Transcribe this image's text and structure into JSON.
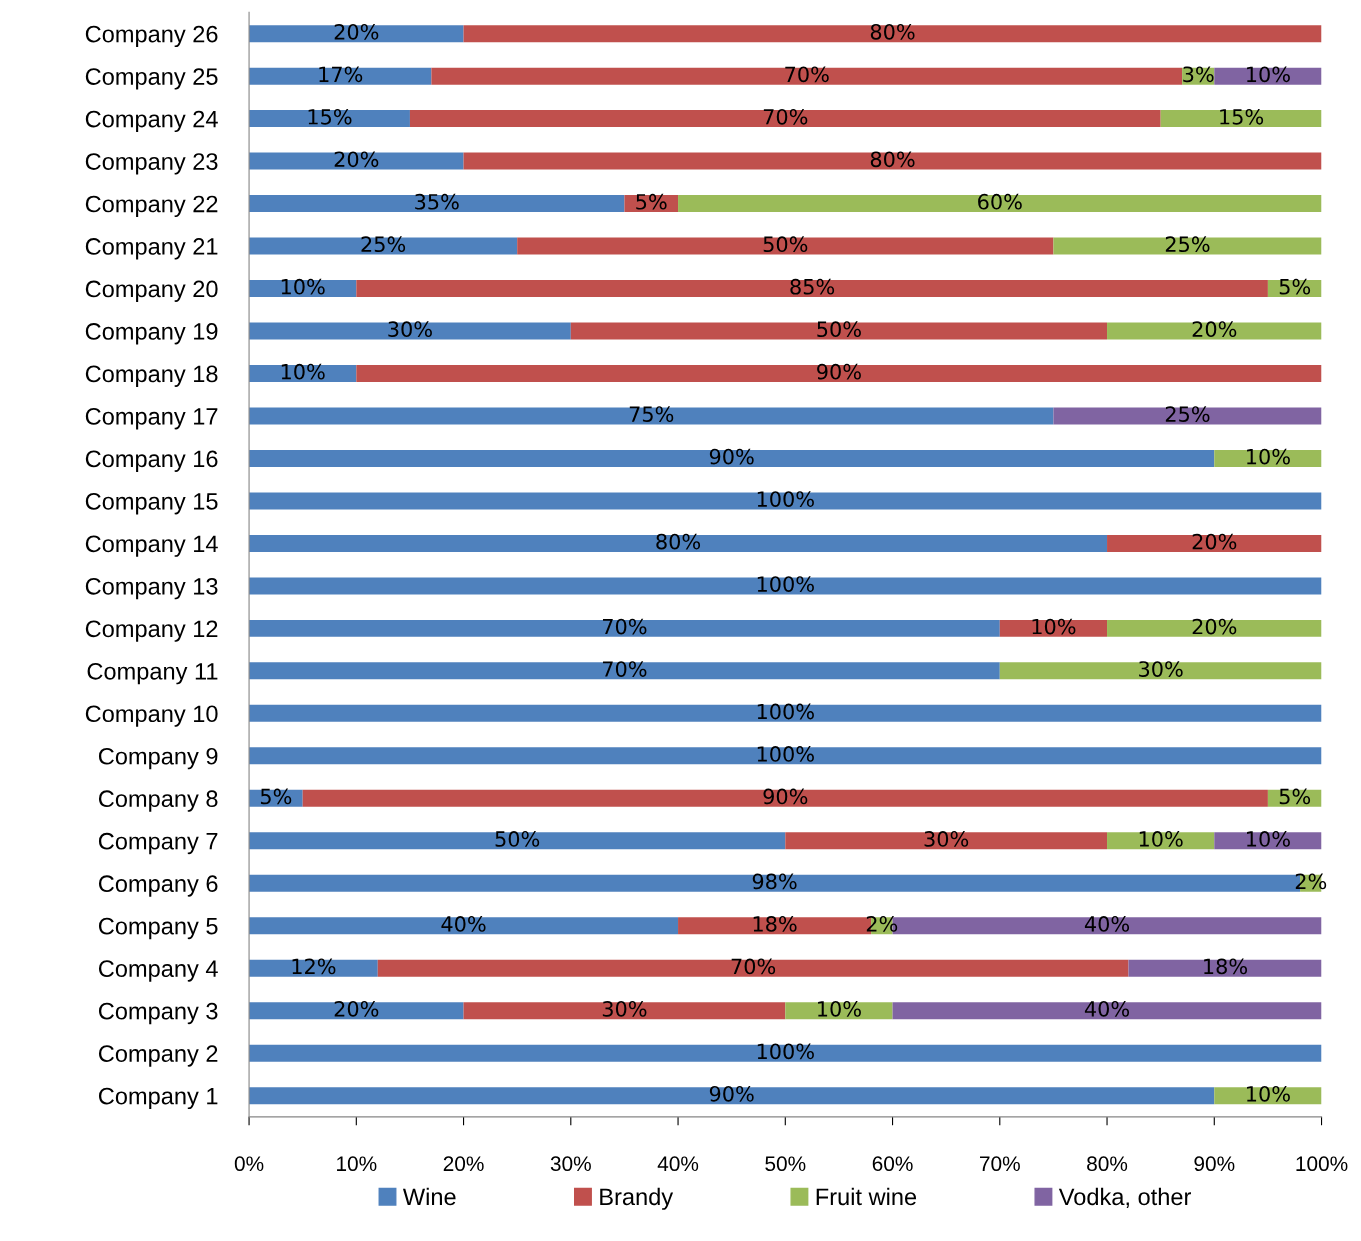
{
  "chart_data": {
    "type": "bar",
    "orientation": "horizontal",
    "stacked": true,
    "categories": [
      "Company 26",
      "Company 25",
      "Company 24",
      "Company 23",
      "Company 22",
      "Company 21",
      "Company 20",
      "Company 19",
      "Company 18",
      "Company 17",
      "Company 16",
      "Company 15",
      "Company 14",
      "Company 13",
      "Company 12",
      "Company 11",
      "Company 10",
      "Company 9",
      "Company 8",
      "Company 7",
      "Company 6",
      "Company 5",
      "Company 4",
      "Company 3",
      "Company 2",
      "Company 1"
    ],
    "series": [
      {
        "name": "Wine",
        "color": "#4f81bd",
        "values": [
          20,
          17,
          15,
          20,
          35,
          25,
          10,
          30,
          10,
          75,
          90,
          100,
          80,
          100,
          70,
          70,
          100,
          100,
          5,
          50,
          98,
          40,
          12,
          20,
          100,
          90
        ],
        "value_labels": [
          "20%",
          "17%",
          "15%",
          "20%",
          "35%",
          "25%",
          "10%",
          "30%",
          "10%",
          "75%",
          "90%",
          "100%",
          "80%",
          "100%",
          "70%",
          "70%",
          "100%",
          "100%",
          "5%",
          "50%",
          "98%",
          "40%",
          "12%",
          "20%",
          "100%",
          "90%"
        ]
      },
      {
        "name": "Brandy",
        "color": "#c0504d",
        "values": [
          80,
          70,
          70,
          80,
          5,
          50,
          85,
          50,
          90,
          null,
          null,
          null,
          20,
          null,
          10,
          null,
          null,
          null,
          90,
          30,
          null,
          18,
          70,
          30,
          null,
          null
        ],
        "value_labels": [
          "80%",
          "70%",
          "70%",
          "80%",
          "5%",
          "50%",
          "85%",
          "50%",
          "90%",
          null,
          null,
          null,
          "20%",
          null,
          "10%",
          null,
          null,
          null,
          "90%",
          "30%",
          null,
          "18%",
          "70%",
          "30%",
          null,
          null
        ]
      },
      {
        "name": "Fruit wine",
        "color": "#9bbb59",
        "values": [
          null,
          3,
          15,
          null,
          60,
          25,
          5,
          20,
          null,
          null,
          10,
          null,
          null,
          null,
          20,
          30,
          null,
          null,
          5,
          10,
          2,
          2,
          null,
          10,
          null,
          10
        ],
        "value_labels": [
          null,
          "3%",
          "15%",
          null,
          "60%",
          "25%",
          "5%",
          "20%",
          null,
          null,
          "10%",
          null,
          null,
          null,
          "20%",
          "30%",
          null,
          null,
          "5%",
          "10%",
          "2%",
          "2%",
          null,
          "10%",
          null,
          "10%"
        ]
      },
      {
        "name": "Vodka, other",
        "color": "#8064a2",
        "values": [
          null,
          10,
          null,
          null,
          null,
          null,
          null,
          null,
          null,
          25,
          null,
          null,
          null,
          null,
          null,
          null,
          null,
          null,
          null,
          10,
          null,
          40,
          18,
          40,
          null,
          null
        ],
        "value_labels": [
          null,
          "10%",
          null,
          null,
          null,
          null,
          null,
          null,
          null,
          "25%",
          null,
          null,
          null,
          null,
          null,
          null,
          null,
          null,
          null,
          "10%",
          null,
          "40%",
          "18%",
          "40%",
          null,
          null
        ]
      }
    ],
    "xlim": [
      0,
      100
    ],
    "xticks": [
      {
        "value": 0,
        "label": "0%"
      },
      {
        "value": 10,
        "label": "10%"
      },
      {
        "value": 20,
        "label": "20%"
      },
      {
        "value": 30,
        "label": "30%"
      },
      {
        "value": 40,
        "label": "40%"
      },
      {
        "value": 50,
        "label": "50%"
      },
      {
        "value": 60,
        "label": "60%"
      },
      {
        "value": 70,
        "label": "70%"
      },
      {
        "value": 80,
        "label": "80%"
      },
      {
        "value": 90,
        "label": "90%"
      },
      {
        "value": 100,
        "label": "100%"
      }
    ],
    "grid": false,
    "legend": "bottom"
  }
}
